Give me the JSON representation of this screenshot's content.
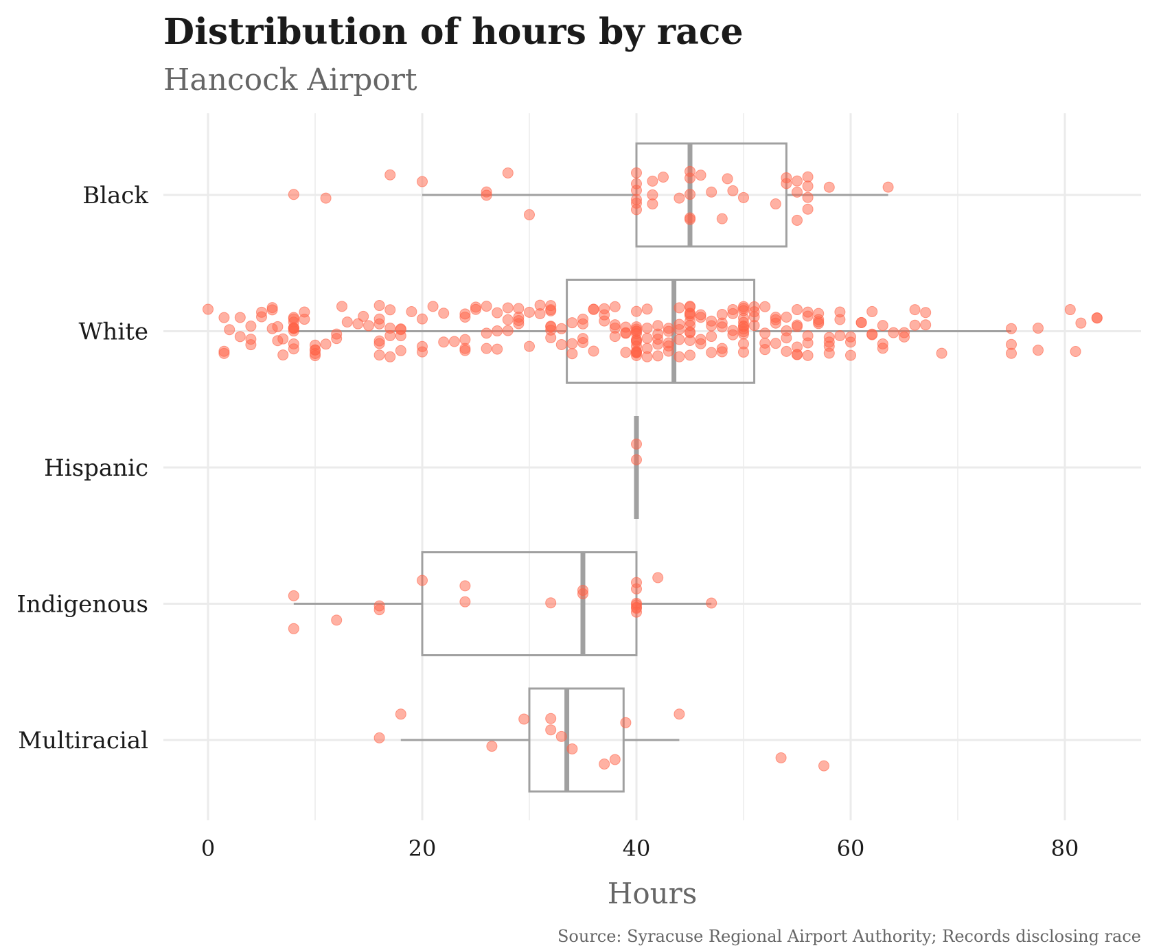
{
  "chart_data": {
    "type": "box",
    "title": "Distribution of hours by race",
    "subtitle": "Hancock Airport",
    "xlabel": "Hours",
    "ylabel": "",
    "caption": "Source: Syracuse Regional Airport Authority; Records disclosing race",
    "xlim": [
      -4,
      87
    ],
    "xticks": [
      0,
      20,
      40,
      60,
      80
    ],
    "categories": [
      "Black",
      "White",
      "Hispanic",
      "Indigenous",
      "Multiracial"
    ],
    "colors": {
      "points": "#ff6347",
      "box": "#a0a0a0",
      "grid": "#ebebeb"
    },
    "boxes": [
      {
        "category": "Black",
        "whisker_low": 20,
        "q1": 40,
        "median": 45,
        "q3": 54,
        "whisker_high": 63.5
      },
      {
        "category": "White",
        "whisker_low": 8,
        "q1": 33.5,
        "median": 43.5,
        "q3": 51,
        "whisker_high": 75
      },
      {
        "category": "Hispanic",
        "whisker_low": 40,
        "q1": 40,
        "median": 40,
        "q3": 40,
        "whisker_high": 40
      },
      {
        "category": "Indigenous",
        "whisker_low": 8,
        "q1": 20,
        "median": 35,
        "q3": 40,
        "whisker_high": 47
      },
      {
        "category": "Multiracial",
        "whisker_low": 18,
        "q1": 30,
        "median": 33.5,
        "q3": 38.8,
        "whisker_high": 44
      }
    ],
    "points": {
      "Black": [
        8,
        11,
        17,
        20,
        26,
        26,
        28,
        30,
        40,
        40,
        40,
        40,
        40,
        40,
        41.5,
        41.5,
        41.5,
        42.5,
        44,
        45,
        45,
        45,
        45,
        45,
        46,
        47,
        48,
        48.5,
        49,
        50,
        53,
        54,
        54,
        55,
        55,
        55,
        56,
        56,
        56,
        56,
        58,
        63.5
      ],
      "White": [
        0,
        1.5,
        1.5,
        1.5,
        2,
        3,
        3,
        4,
        4,
        4,
        5,
        5,
        6,
        6,
        6,
        6.5,
        6.5,
        7,
        7,
        8,
        8,
        8,
        8,
        8,
        8,
        8,
        8,
        8,
        8,
        9,
        9,
        10,
        10,
        10,
        10,
        10,
        11,
        12,
        12,
        12.5,
        13,
        14,
        14.5,
        15,
        16,
        16,
        16,
        16,
        16,
        16,
        17,
        17,
        17,
        17,
        18,
        18,
        18,
        18,
        19,
        20,
        20,
        20,
        21,
        22,
        22,
        23,
        24,
        24,
        24,
        24,
        24,
        25,
        25,
        26,
        26,
        26,
        27,
        27,
        27,
        28,
        28,
        28,
        29,
        29,
        29,
        29,
        30,
        30,
        31,
        31,
        32,
        32,
        32,
        32,
        32,
        32,
        32,
        33,
        33,
        34,
        34,
        34,
        35,
        35,
        35,
        35,
        36,
        36,
        36,
        37,
        37,
        37,
        38,
        38,
        38,
        38,
        39,
        39,
        39,
        39,
        40,
        40,
        40,
        40,
        40,
        40,
        40,
        40,
        40,
        40,
        40,
        40,
        40,
        40,
        40,
        41,
        41,
        41,
        41,
        41,
        42,
        42,
        42,
        42,
        42,
        43,
        43,
        43,
        43,
        43,
        44,
        44,
        44,
        44,
        44,
        45,
        45,
        45,
        45,
        45,
        45,
        45,
        45,
        45,
        45,
        45,
        46,
        46,
        46,
        46,
        47,
        47,
        47,
        47,
        48,
        48,
        48,
        48,
        48,
        49,
        49,
        49,
        49,
        50,
        50,
        50,
        50,
        50,
        50,
        50,
        50,
        50,
        50,
        50,
        50,
        51,
        51,
        51,
        51,
        52,
        52,
        52,
        52,
        53,
        53,
        53,
        53,
        54,
        54,
        54,
        54,
        55,
        55,
        55,
        55,
        55,
        55,
        56,
        56,
        56,
        56,
        56,
        57,
        57,
        57,
        57,
        58,
        58,
        58,
        58,
        59,
        59,
        59,
        60,
        60,
        60,
        61,
        61,
        62,
        62,
        62,
        63,
        63,
        63,
        64,
        65,
        65,
        66,
        66,
        67,
        67,
        68.5,
        75,
        75,
        75,
        77.5,
        77.5,
        80.5,
        81,
        81.5,
        83,
        83
      ],
      "Hispanic": [
        40,
        40
      ],
      "Indigenous": [
        8,
        8,
        12,
        16,
        16,
        20,
        24,
        24,
        32,
        35,
        35,
        40,
        40,
        40,
        40,
        40,
        40,
        40,
        42,
        47
      ],
      "Multiracial": [
        16,
        18,
        26.5,
        29.5,
        32,
        32,
        33,
        34,
        37,
        38,
        39,
        44,
        53.5,
        57.5
      ]
    }
  }
}
